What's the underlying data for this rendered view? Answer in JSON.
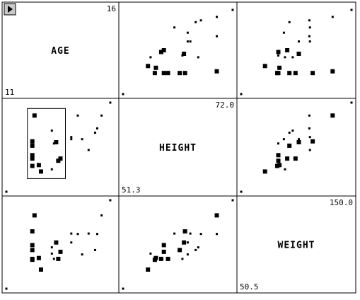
{
  "menu_button": {
    "icon": "play-triangle-icon"
  },
  "chart_data": {
    "type": "scatter",
    "subtype": "scatterplot-matrix",
    "variables": [
      {
        "name": "AGE",
        "min": "11",
        "max": "16",
        "range": [
          11,
          16
        ]
      },
      {
        "name": "HEIGHT",
        "min": "51.3",
        "max": "72.0",
        "range": [
          51.3,
          72.0
        ]
      },
      {
        "name": "WEIGHT",
        "min": "50.5",
        "max": "150.0",
        "range": [
          50.5,
          150.0
        ]
      }
    ],
    "selection_box": {
      "row": 1,
      "col": 0
    },
    "points": [
      {
        "AGE": 11.0,
        "HEIGHT": 51.3,
        "WEIGHT": 50.5,
        "selected": false
      },
      {
        "AGE": 12.2,
        "HEIGHT": 57.3,
        "WEIGHT": 83.0,
        "selected": true
      },
      {
        "AGE": 12.2,
        "HEIGHT": 59.0,
        "WEIGHT": 99.5,
        "selected": true
      },
      {
        "AGE": 12.2,
        "HEIGHT": 59.8,
        "WEIGHT": 84.0,
        "selected": true
      },
      {
        "AGE": 12.2,
        "HEIGHT": 62.0,
        "WEIGHT": 94.0,
        "selected": true
      },
      {
        "AGE": 12.2,
        "HEIGHT": 63.0,
        "WEIGHT": 115.0,
        "selected": true
      },
      {
        "AGE": 12.3,
        "HEIGHT": 69.0,
        "WEIGHT": 133.0,
        "selected": true
      },
      {
        "AGE": 12.5,
        "HEIGHT": 57.5,
        "WEIGHT": 85.0,
        "selected": true
      },
      {
        "AGE": 12.6,
        "HEIGHT": 56.0,
        "WEIGHT": 72.0,
        "selected": true
      },
      {
        "AGE": 13.1,
        "HEIGHT": 65.5,
        "WEIGHT": 97.0,
        "selected": false
      },
      {
        "AGE": 13.1,
        "HEIGHT": 56.5,
        "WEIGHT": 90.0,
        "selected": false
      },
      {
        "AGE": 13.2,
        "HEIGHT": 62.5,
        "WEIGHT": 84.0,
        "selected": false
      },
      {
        "AGE": 13.3,
        "HEIGHT": 62.8,
        "WEIGHT": 102.5,
        "selected": true
      },
      {
        "AGE": 13.4,
        "HEIGHT": 58.5,
        "WEIGHT": 84.0,
        "selected": true
      },
      {
        "AGE": 13.5,
        "HEIGHT": 59.0,
        "WEIGHT": 92.0,
        "selected": true
      },
      {
        "AGE": 14.0,
        "HEIGHT": 63.5,
        "WEIGHT": 102.5,
        "selected": false
      },
      {
        "AGE": 14.0,
        "HEIGHT": 64.0,
        "WEIGHT": 112.5,
        "selected": false
      },
      {
        "AGE": 14.3,
        "HEIGHT": 69.0,
        "WEIGHT": 112.0,
        "selected": false
      },
      {
        "AGE": 14.5,
        "HEIGHT": 63.5,
        "WEIGHT": 89.0,
        "selected": false
      },
      {
        "AGE": 14.8,
        "HEIGHT": 61.0,
        "WEIGHT": 112.5,
        "selected": false
      },
      {
        "AGE": 15.1,
        "HEIGHT": 65.0,
        "WEIGHT": 94.0,
        "selected": false
      },
      {
        "AGE": 15.2,
        "HEIGHT": 66.0,
        "WEIGHT": 112.0,
        "selected": false
      },
      {
        "AGE": 15.4,
        "HEIGHT": 69.0,
        "WEIGHT": 133.0,
        "selected": false
      },
      {
        "AGE": 15.8,
        "HEIGHT": 72.0,
        "WEIGHT": 150.0,
        "selected": false
      }
    ]
  }
}
